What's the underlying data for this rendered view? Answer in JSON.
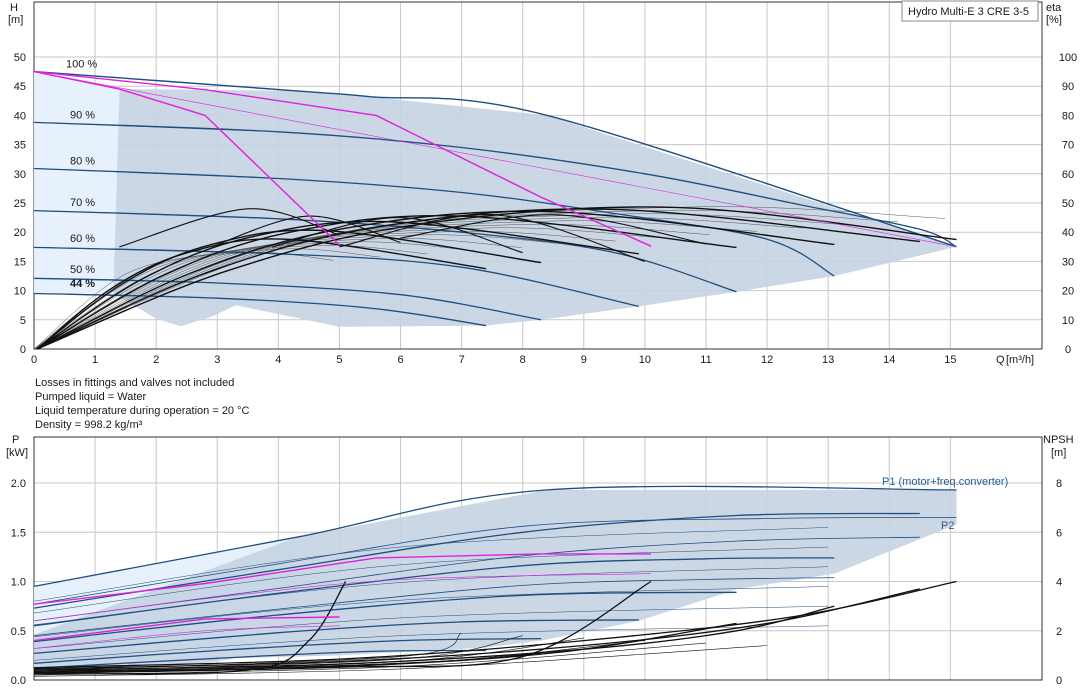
{
  "model": "Hydro Multi-E 3 CRE 3-5",
  "notes": [
    "Losses in fittings and valves not included",
    "Pumped liquid = Water",
    "Liquid temperature during operation = 20 °C",
    "Density = 998.2 kg/m³"
  ],
  "colors": {
    "envelope_fill": "#c5d3e2",
    "light_fill": "#e6f1fb",
    "speed_curve": "#1f4e80",
    "npsh_curve": "#111111",
    "highlight": "#e020e0",
    "grid": "#c7c7c7"
  },
  "chart_data": [
    {
      "type": "line",
      "id": "head-chart",
      "xlabel": "Q",
      "xunit": "[m³/h]",
      "ylabel": "H",
      "yunit": "[m]",
      "y2label": "eta",
      "y2unit": "[%]",
      "xlim": [
        0,
        16.5
      ],
      "ylim": [
        0,
        50
      ],
      "y2lim": [
        0,
        100
      ],
      "xticks": [
        "0",
        "1",
        "2",
        "3",
        "4",
        "5",
        "6",
        "7",
        "8",
        "9",
        "10",
        "11",
        "12",
        "13",
        "14",
        "15"
      ],
      "yticks": [
        "0",
        "5",
        "10",
        "15",
        "20",
        "25",
        "30",
        "35",
        "40",
        "45",
        "50"
      ],
      "y2ticks": [
        "0",
        "10",
        "20",
        "30",
        "40",
        "50",
        "60",
        "70",
        "80",
        "90",
        "100"
      ],
      "grid": true,
      "speed_labels": [
        "100 %",
        "90 %",
        "80 %",
        "70 %",
        "60 %",
        "50 %",
        "44 %"
      ],
      "envelope": [
        [
          1.4,
          44.5
        ],
        [
          2.8,
          44.4
        ],
        [
          4.3,
          44.2
        ],
        [
          5.5,
          43.2
        ],
        [
          8.4,
          40
        ],
        [
          15.1,
          17.5
        ],
        [
          13.1,
          12.5
        ],
        [
          11.5,
          9.8
        ],
        [
          9.9,
          7.3
        ],
        [
          8.3,
          5
        ],
        [
          7.4,
          4
        ],
        [
          5,
          3.8
        ],
        [
          3.3,
          7.5
        ],
        [
          2.9,
          5.5
        ],
        [
          2.4,
          3.9
        ],
        [
          2,
          5.2
        ],
        [
          1.3,
          9.5
        ],
        [
          1.4,
          44.5
        ]
      ],
      "light_envelope": [
        [
          0,
          47.5
        ],
        [
          1.4,
          44.5
        ],
        [
          1.3,
          9.5
        ],
        [
          0,
          9.5
        ]
      ],
      "head_curves": [
        {
          "name": "100 %",
          "points": [
            [
              0,
              47.5
            ],
            [
              4.3,
              44.2
            ],
            [
              5.5,
              43.2
            ],
            [
              8.4,
              40
            ],
            [
              15.1,
              17.5
            ]
          ]
        },
        {
          "name": "90 %",
          "points": [
            [
              0,
              38.8
            ],
            [
              4,
              37.2
            ],
            [
              7,
              34.5
            ],
            [
              10,
              30
            ],
            [
              12.5,
              24.8
            ],
            [
              14.5,
              20.5
            ],
            [
              15.1,
              17.5
            ]
          ]
        },
        {
          "name": "80 %",
          "points": [
            [
              0,
              30.9
            ],
            [
              4,
              29.2
            ],
            [
              7,
              26.8
            ],
            [
              9.5,
              23.2
            ],
            [
              12,
              18.8
            ],
            [
              13.1,
              12.5
            ]
          ]
        },
        {
          "name": "70 %",
          "points": [
            [
              0,
              23.7
            ],
            [
              4,
              22.3
            ],
            [
              7,
              20
            ],
            [
              9.5,
              16.5
            ],
            [
              11.5,
              9.8
            ]
          ]
        },
        {
          "name": "60 %",
          "points": [
            [
              0,
              17.4
            ],
            [
              4,
              16.3
            ],
            [
              7,
              14
            ],
            [
              9.9,
              7.3
            ]
          ]
        },
        {
          "name": "50 %",
          "points": [
            [
              0,
              12.1
            ],
            [
              3,
              11.3
            ],
            [
              6,
              9.3
            ],
            [
              8.3,
              5
            ]
          ]
        },
        {
          "name": "44 %",
          "points": [
            [
              0,
              9.5
            ],
            [
              3,
              8.7
            ],
            [
              5.5,
              7
            ],
            [
              7.4,
              4
            ]
          ]
        }
      ],
      "highlight_head": {
        "points": [
          [
            0,
            47.5
          ],
          [
            2.8,
            44.4
          ],
          [
            5.6,
            40
          ],
          [
            8.3,
            26
          ],
          [
            10.1,
            17.6
          ]
        ]
      },
      "highlight_head_low": {
        "points": [
          [
            0,
            47.5
          ],
          [
            1.4,
            44.5
          ],
          [
            2.8,
            40
          ],
          [
            5,
            17.8
          ]
        ]
      },
      "efficiency_curves": [
        {
          "name": "100 %",
          "peak": [
            10.5,
            48.5
          ],
          "end": [
            15.1,
            37.5
          ]
        },
        {
          "name": "90 %",
          "peak": [
            9.5,
            47.8
          ],
          "end": [
            14.5,
            36.8
          ]
        },
        {
          "name": "80 %",
          "peak": [
            8.5,
            47
          ],
          "end": [
            13.1,
            35.8
          ]
        },
        {
          "name": "70 %",
          "peak": [
            7,
            45.5
          ],
          "end": [
            11.5,
            34.8
          ]
        },
        {
          "name": "60 %",
          "peak": [
            5.9,
            43.5
          ],
          "end": [
            9.9,
            32.6
          ]
        },
        {
          "name": "50 %",
          "peak": [
            4.8,
            40.5
          ],
          "end": [
            8.3,
            29.6
          ]
        },
        {
          "name": "44 %",
          "peak": [
            4.2,
            37.5
          ],
          "end": [
            7.4,
            27.5
          ]
        }
      ]
    },
    {
      "type": "line",
      "id": "power-chart",
      "ylabel": "P",
      "yunit": "[kW]",
      "y2label": "NPSH",
      "y2unit": "[m]",
      "xlim": [
        0,
        16.5
      ],
      "ylim": [
        0,
        2.2
      ],
      "y2lim": [
        0,
        8.8
      ],
      "yticks": [
        "0.0",
        "0.5",
        "1.0",
        "1.5",
        "2.0"
      ],
      "y2ticks": [
        "0",
        "2",
        "4",
        "6",
        "8"
      ],
      "grid": true,
      "series_labels": [
        "P1 (motor+freq.converter)",
        "P2"
      ],
      "envelope": [
        [
          0,
          0.46
        ],
        [
          4.3,
          1.45
        ],
        [
          8.4,
          1.93
        ],
        [
          15.1,
          1.93
        ],
        [
          15.1,
          1.58
        ],
        [
          13.1,
          1.08
        ],
        [
          11.5,
          0.92
        ],
        [
          9.9,
          0.6
        ],
        [
          8.3,
          0.4
        ],
        [
          7.4,
          0.33
        ],
        [
          5,
          0.25
        ],
        [
          3.3,
          0.22
        ],
        [
          2.9,
          0.18
        ],
        [
          2.4,
          0.15
        ],
        [
          2,
          0.14
        ],
        [
          0,
          0.13
        ]
      ],
      "p1_curves": [
        {
          "name": "100 %",
          "points": [
            [
              0,
              0.95
            ],
            [
              4.3,
              1.45
            ],
            [
              8.4,
              1.93
            ],
            [
              15.1,
              1.93
            ]
          ]
        },
        {
          "name": "90 %",
          "points": [
            [
              0,
              0.73
            ],
            [
              4,
              1.12
            ],
            [
              8,
              1.5
            ],
            [
              11.5,
              1.67
            ],
            [
              14.5,
              1.69
            ]
          ]
        },
        {
          "name": "80 %",
          "points": [
            [
              0,
              0.55
            ],
            [
              4,
              0.88
            ],
            [
              8,
              1.16
            ],
            [
              11,
              1.23
            ],
            [
              13.1,
              1.24
            ]
          ]
        },
        {
          "name": "70 %",
          "points": [
            [
              0,
              0.39
            ],
            [
              4,
              0.66
            ],
            [
              8,
              0.86
            ],
            [
              11.5,
              0.89
            ]
          ]
        },
        {
          "name": "60 %",
          "points": [
            [
              0,
              0.27
            ],
            [
              4,
              0.48
            ],
            [
              7,
              0.59
            ],
            [
              9.9,
              0.61
            ]
          ]
        },
        {
          "name": "50 %",
          "points": [
            [
              0,
              0.17
            ],
            [
              3,
              0.3
            ],
            [
              6,
              0.4
            ],
            [
              8.3,
              0.42
            ]
          ]
        },
        {
          "name": "44 %",
          "points": [
            [
              0,
              0.12
            ],
            [
              3,
              0.22
            ],
            [
              5.5,
              0.29
            ],
            [
              7.4,
              0.3
            ]
          ]
        }
      ],
      "p2_curves": [
        {
          "name": "100 %",
          "points": [
            [
              0,
              0.77
            ],
            [
              4,
              1.18
            ],
            [
              8,
              1.56
            ],
            [
              12,
              1.64
            ],
            [
              15.1,
              1.65
            ]
          ]
        },
        {
          "name": "90 %",
          "points": [
            [
              0,
              0.6
            ],
            [
              4,
              0.93
            ],
            [
              8,
              1.26
            ],
            [
              11.5,
              1.41
            ],
            [
              14.5,
              1.45
            ]
          ]
        },
        {
          "name": "80 %",
          "points": [
            [
              0,
              0.45
            ],
            [
              4,
              0.72
            ],
            [
              8,
              0.96
            ],
            [
              11,
              1.02
            ],
            [
              13.1,
              1.04
            ]
          ]
        }
      ],
      "highlight_power": {
        "points": [
          [
            0,
            0.77
          ],
          [
            2.8,
            0.98
          ],
          [
            5.6,
            1.24
          ],
          [
            8.3,
            1.28
          ],
          [
            10.1,
            1.28
          ]
        ]
      },
      "highlight_power_low": {
        "points": [
          [
            0,
            0.4
          ],
          [
            2.8,
            0.62
          ],
          [
            5,
            0.64
          ]
        ]
      },
      "npsh_curves": [
        {
          "name": "100 %",
          "points": [
            [
              0,
              0.5
            ],
            [
              5,
              0.85
            ],
            [
              9,
              1.6
            ],
            [
              12.5,
              2.6
            ],
            [
              15.1,
              4
            ]
          ]
        },
        {
          "name": "90 %",
          "points": [
            [
              0,
              0.45
            ],
            [
              5,
              0.75
            ],
            [
              9,
              1.4
            ],
            [
              12,
              2.3
            ],
            [
              14.5,
              3.7
            ]
          ]
        },
        {
          "name": "80 %",
          "points": [
            [
              0,
              0.4
            ],
            [
              5,
              0.65
            ],
            [
              9,
              1.25
            ],
            [
              11.5,
              2
            ],
            [
              13.1,
              3
            ]
          ]
        },
        {
          "name": "70 %",
          "points": [
            [
              0,
              0.35
            ],
            [
              5,
              0.58
            ],
            [
              8.5,
              1.1
            ],
            [
              11.5,
              2.3
            ]
          ]
        },
        {
          "name": "60 %",
          "points": [
            [
              0,
              0.3
            ],
            [
              5,
              0.52
            ],
            [
              8,
              0.95
            ],
            [
              10.1,
              4
            ]
          ]
        },
        {
          "name": "50 %",
          "points": [
            [
              0,
              0.28
            ],
            [
              4,
              0.45
            ],
            [
              7,
              0.8
            ],
            [
              8.3,
              1.1
            ]
          ]
        },
        {
          "name": "44 %",
          "points": [
            [
              0,
              0.25
            ],
            [
              3.5,
              0.4
            ],
            [
              4.5,
              1.6
            ],
            [
              5.1,
              4
            ]
          ]
        }
      ]
    }
  ]
}
